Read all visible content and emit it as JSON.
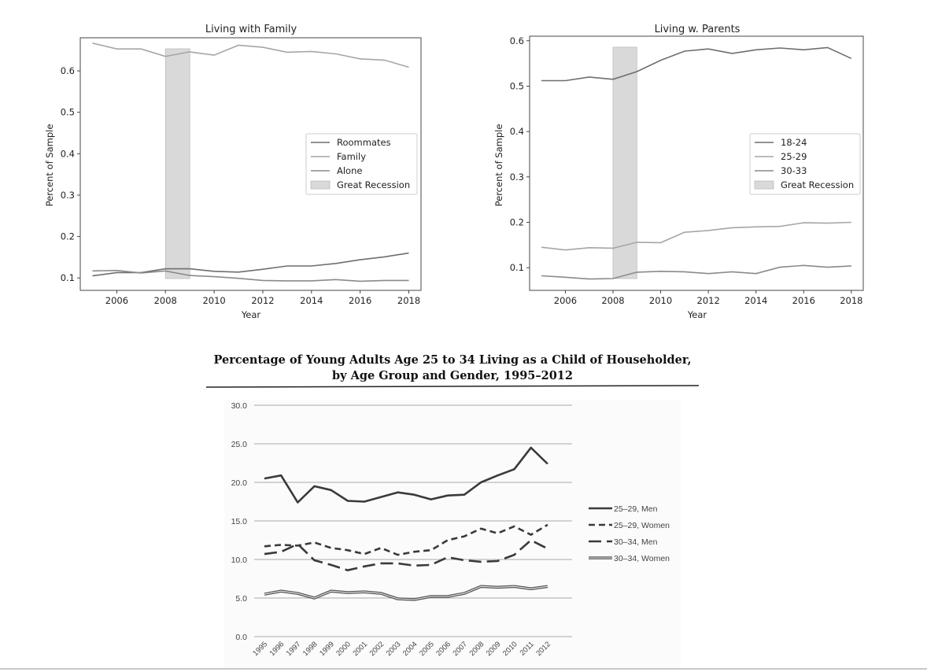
{
  "chart_data": [
    {
      "type": "line",
      "title": "Living with Family",
      "xlabel": "Year",
      "ylabel": "Percent of Sample",
      "xlim": [
        2004.5,
        2018.5
      ],
      "ylim": [
        0.07,
        0.68
      ],
      "xticks": [
        2006,
        2008,
        2010,
        2012,
        2014,
        2016,
        2018
      ],
      "xtick_labels": [
        "2006",
        "2008",
        "2010",
        "2012",
        "2014",
        "2016",
        "2018"
      ],
      "yticks": [
        0.1,
        0.2,
        0.3,
        0.4,
        0.5,
        0.6
      ],
      "ytick_labels": [
        "0.1",
        "0.2",
        "0.3",
        "0.4",
        "0.5",
        "0.6"
      ],
      "legend_position": "center-right",
      "shaded_region": {
        "label": "Great Recession",
        "x": [
          2008,
          2009
        ],
        "color": "#d9d9d9"
      },
      "x": [
        2005,
        2006,
        2007,
        2008,
        2009,
        2010,
        2011,
        2012,
        2013,
        2014,
        2015,
        2016,
        2017,
        2018
      ],
      "series": [
        {
          "name": "Roommates",
          "color": "#6e6e6e",
          "values": [
            0.105,
            0.113,
            0.113,
            0.122,
            0.122,
            0.116,
            0.114,
            0.121,
            0.129,
            0.129,
            0.135,
            0.144,
            0.151,
            0.16
          ]
        },
        {
          "name": "Family",
          "color": "#a6a6a6",
          "values": [
            0.667,
            0.653,
            0.653,
            0.635,
            0.646,
            0.638,
            0.662,
            0.657,
            0.645,
            0.647,
            0.641,
            0.629,
            0.626,
            0.609
          ]
        },
        {
          "name": "Alone",
          "color": "#8a8a8a",
          "values": [
            0.117,
            0.118,
            0.112,
            0.117,
            0.106,
            0.103,
            0.099,
            0.094,
            0.093,
            0.093,
            0.096,
            0.092,
            0.094,
            0.094
          ]
        }
      ]
    },
    {
      "type": "line",
      "title": "Living w. Parents",
      "xlabel": "Year",
      "ylabel": "Percent of Sample",
      "xlim": [
        2004.5,
        2018.5
      ],
      "ylim": [
        0.05,
        0.61
      ],
      "xticks": [
        2006,
        2008,
        2010,
        2012,
        2014,
        2016,
        2018
      ],
      "xtick_labels": [
        "2006",
        "2008",
        "2010",
        "2012",
        "2014",
        "2016",
        "2018"
      ],
      "yticks": [
        0.1,
        0.2,
        0.3,
        0.4,
        0.5,
        0.6
      ],
      "ytick_labels": [
        "0.1",
        "0.2",
        "0.3",
        "0.4",
        "0.5",
        "0.6"
      ],
      "legend_position": "center-right",
      "shaded_region": {
        "label": "Great Recession",
        "x": [
          2008,
          2009
        ],
        "color": "#d9d9d9"
      },
      "x": [
        2005,
        2006,
        2007,
        2008,
        2009,
        2010,
        2011,
        2012,
        2013,
        2014,
        2015,
        2016,
        2017,
        2018
      ],
      "series": [
        {
          "name": "18-24",
          "color": "#6e6e6e",
          "values": [
            0.512,
            0.512,
            0.52,
            0.515,
            0.532,
            0.557,
            0.577,
            0.582,
            0.572,
            0.58,
            0.584,
            0.58,
            0.585,
            0.561
          ]
        },
        {
          "name": "25-29",
          "color": "#a6a6a6",
          "values": [
            0.145,
            0.139,
            0.144,
            0.143,
            0.156,
            0.155,
            0.178,
            0.182,
            0.188,
            0.19,
            0.191,
            0.199,
            0.198,
            0.2
          ]
        },
        {
          "name": "30-33",
          "color": "#8a8a8a",
          "values": [
            0.082,
            0.079,
            0.075,
            0.076,
            0.09,
            0.092,
            0.091,
            0.087,
            0.091,
            0.087,
            0.101,
            0.105,
            0.101,
            0.104
          ]
        }
      ]
    },
    {
      "type": "line",
      "title": "Percentage of Young Adults Age 25 to 34 Living as a Child of Householder,",
      "subtitle": "by Age Group and Gender, 1995–2012",
      "xlabel": "",
      "ylabel": "",
      "ylim": [
        0,
        30
      ],
      "yticks": [
        0,
        5,
        10,
        15,
        20,
        25,
        30
      ],
      "ytick_labels": [
        "0.0",
        "5.0",
        "10.0",
        "15.0",
        "20.0",
        "25.0",
        "30.0"
      ],
      "grid": true,
      "legend_position": "right",
      "categories": [
        "1995",
        "1996",
        "1997",
        "1998",
        "1999",
        "2000",
        "2001",
        "2002",
        "2003",
        "2004",
        "2005",
        "2006",
        "2007",
        "2008",
        "2009",
        "2010",
        "2011",
        "2012"
      ],
      "series": [
        {
          "name": "25–29, Men",
          "style": "solid",
          "color": "#3a3a3a",
          "values": [
            20.5,
            20.9,
            17.4,
            19.5,
            19.0,
            17.6,
            17.5,
            18.1,
            18.7,
            18.4,
            17.8,
            18.3,
            18.4,
            20.0,
            20.9,
            21.7,
            24.5,
            22.4
          ]
        },
        {
          "name": "25–29, Women",
          "style": "dashed",
          "color": "#3a3a3a",
          "values": [
            11.7,
            11.9,
            11.8,
            12.2,
            11.5,
            11.2,
            10.7,
            11.5,
            10.6,
            11.0,
            11.2,
            12.5,
            13.0,
            14.0,
            13.4,
            14.3,
            13.2,
            14.5
          ]
        },
        {
          "name": "30–34, Men",
          "style": "longdash",
          "color": "#3a3a3a",
          "values": [
            10.7,
            11.0,
            12.0,
            9.9,
            9.3,
            8.6,
            9.1,
            9.5,
            9.5,
            9.2,
            9.3,
            10.3,
            9.9,
            9.7,
            9.8,
            10.6,
            12.5,
            11.4
          ]
        },
        {
          "name": "30–34, Women",
          "style": "double",
          "color": "#555555",
          "values": [
            5.5,
            5.9,
            5.6,
            5.0,
            5.9,
            5.7,
            5.8,
            5.6,
            4.9,
            4.8,
            5.2,
            5.2,
            5.6,
            6.5,
            6.4,
            6.5,
            6.2,
            6.5
          ]
        }
      ]
    }
  ]
}
